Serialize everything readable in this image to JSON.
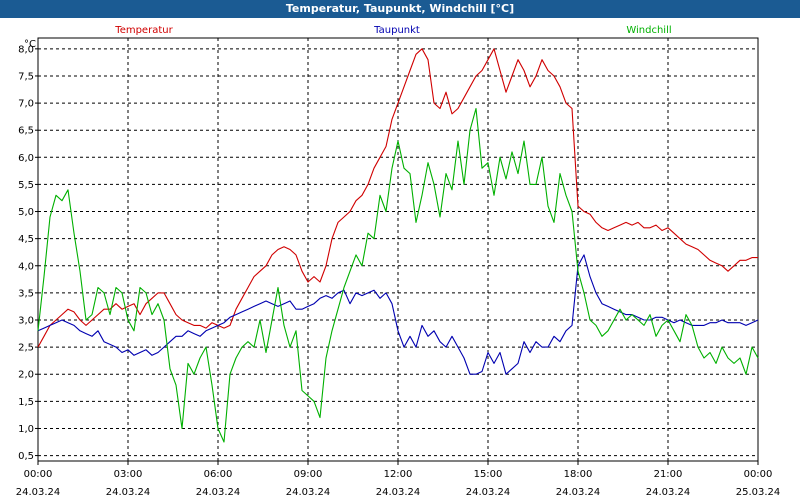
{
  "window": {
    "title": "Temperatur, Taupunkt, Windchill [°C]"
  },
  "chart_data": {
    "type": "line",
    "title": "Temperatur, Taupunkt, Windchill [°C]",
    "ylabel": "°C",
    "ylim": [
      0.4,
      8.2
    ],
    "xlim": [
      0,
      24
    ],
    "grid": true,
    "legend_placement": "top",
    "yticks": [
      "0,5",
      "1,0",
      "1,5",
      "2,0",
      "2,5",
      "3,0",
      "3,5",
      "4,0",
      "4,5",
      "5,0",
      "5,5",
      "6,0",
      "6,5",
      "7,0",
      "7,5",
      "8,0"
    ],
    "xticks": [
      {
        "time": "00:00",
        "date": "24.03.24"
      },
      {
        "time": "03:00",
        "date": "24.03.24"
      },
      {
        "time": "06:00",
        "date": "24.03.24"
      },
      {
        "time": "09:00",
        "date": "24.03.24"
      },
      {
        "time": "12:00",
        "date": "24.03.24"
      },
      {
        "time": "15:00",
        "date": "24.03.24"
      },
      {
        "time": "18:00",
        "date": "24.03.24"
      },
      {
        "time": "21:00",
        "date": "24.03.24"
      },
      {
        "time": "00:00",
        "date": "25.03.24"
      }
    ],
    "series": [
      {
        "name": "Temperatur",
        "color": "#d00000",
        "x": [
          0,
          0.2,
          0.4,
          0.6,
          0.8,
          1.0,
          1.2,
          1.4,
          1.6,
          1.8,
          2.0,
          2.2,
          2.4,
          2.6,
          2.8,
          3.0,
          3.2,
          3.4,
          3.6,
          3.8,
          4.0,
          4.2,
          4.4,
          4.6,
          4.8,
          5.0,
          5.2,
          5.4,
          5.6,
          5.8,
          6.0,
          6.2,
          6.4,
          6.6,
          6.8,
          7.0,
          7.2,
          7.4,
          7.6,
          7.8,
          8.0,
          8.2,
          8.4,
          8.6,
          8.8,
          9.0,
          9.2,
          9.4,
          9.6,
          9.8,
          10.0,
          10.2,
          10.4,
          10.6,
          10.8,
          11.0,
          11.2,
          11.4,
          11.6,
          11.8,
          12.0,
          12.2,
          12.4,
          12.6,
          12.8,
          13.0,
          13.2,
          13.4,
          13.6,
          13.8,
          14.0,
          14.2,
          14.4,
          14.6,
          14.8,
          15.0,
          15.2,
          15.4,
          15.6,
          15.8,
          16.0,
          16.2,
          16.4,
          16.6,
          16.8,
          17.0,
          17.2,
          17.4,
          17.6,
          17.8,
          18.0,
          18.2,
          18.4,
          18.6,
          18.8,
          19.0,
          19.2,
          19.4,
          19.6,
          19.8,
          20.0,
          20.2,
          20.4,
          20.6,
          20.8,
          21.0,
          21.2,
          21.4,
          21.6,
          21.8,
          22.0,
          22.2,
          22.4,
          22.6,
          22.8,
          23.0,
          23.2,
          23.4,
          23.6,
          23.8,
          24.0
        ],
        "y": [
          2.5,
          2.7,
          2.9,
          3.0,
          3.1,
          3.2,
          3.15,
          3.0,
          2.9,
          3.0,
          3.1,
          3.2,
          3.2,
          3.3,
          3.2,
          3.25,
          3.3,
          3.1,
          3.3,
          3.4,
          3.5,
          3.5,
          3.3,
          3.1,
          3.0,
          2.95,
          2.9,
          2.9,
          2.85,
          2.95,
          2.9,
          2.85,
          2.9,
          3.2,
          3.4,
          3.6,
          3.8,
          3.9,
          4.0,
          4.2,
          4.3,
          4.35,
          4.3,
          4.2,
          3.9,
          3.7,
          3.8,
          3.7,
          4.0,
          4.5,
          4.8,
          4.9,
          5.0,
          5.2,
          5.3,
          5.5,
          5.8,
          6.0,
          6.2,
          6.7,
          7.0,
          7.3,
          7.6,
          7.9,
          8.0,
          7.8,
          7.0,
          6.9,
          7.2,
          6.8,
          6.9,
          7.1,
          7.3,
          7.5,
          7.6,
          7.8,
          8.0,
          7.6,
          7.2,
          7.5,
          7.8,
          7.6,
          7.3,
          7.5,
          7.8,
          7.6,
          7.5,
          7.3,
          7.0,
          6.9,
          5.1,
          5.0,
          4.95,
          4.8,
          4.7,
          4.65,
          4.7,
          4.75,
          4.8,
          4.75,
          4.8,
          4.7,
          4.7,
          4.75,
          4.65,
          4.7,
          4.6,
          4.5,
          4.4,
          4.35,
          4.3,
          4.2,
          4.1,
          4.05,
          4.0,
          3.9,
          4.0,
          4.1,
          4.1,
          4.15,
          4.15
        ]
      },
      {
        "name": "Taupunkt",
        "color": "#0000b0",
        "x": [
          0,
          0.2,
          0.4,
          0.6,
          0.8,
          1.0,
          1.2,
          1.4,
          1.6,
          1.8,
          2.0,
          2.2,
          2.4,
          2.6,
          2.8,
          3.0,
          3.2,
          3.4,
          3.6,
          3.8,
          4.0,
          4.2,
          4.4,
          4.6,
          4.8,
          5.0,
          5.2,
          5.4,
          5.6,
          5.8,
          6.0,
          6.2,
          6.4,
          6.6,
          6.8,
          7.0,
          7.2,
          7.4,
          7.6,
          7.8,
          8.0,
          8.2,
          8.4,
          8.6,
          8.8,
          9.0,
          9.2,
          9.4,
          9.6,
          9.8,
          10.0,
          10.2,
          10.4,
          10.6,
          10.8,
          11.0,
          11.2,
          11.4,
          11.6,
          11.8,
          12.0,
          12.2,
          12.4,
          12.6,
          12.8,
          13.0,
          13.2,
          13.4,
          13.6,
          13.8,
          14.0,
          14.2,
          14.4,
          14.6,
          14.8,
          15.0,
          15.2,
          15.4,
          15.6,
          15.8,
          16.0,
          16.2,
          16.4,
          16.6,
          16.8,
          17.0,
          17.2,
          17.4,
          17.6,
          17.8,
          18.0,
          18.2,
          18.4,
          18.6,
          18.8,
          19.0,
          19.2,
          19.4,
          19.6,
          19.8,
          20.0,
          20.2,
          20.4,
          20.6,
          20.8,
          21.0,
          21.2,
          21.4,
          21.6,
          21.8,
          22.0,
          22.2,
          22.4,
          22.6,
          22.8,
          23.0,
          23.2,
          23.4,
          23.6,
          23.8,
          24.0
        ],
        "y": [
          2.8,
          2.85,
          2.9,
          2.95,
          3.0,
          2.95,
          2.9,
          2.8,
          2.75,
          2.7,
          2.8,
          2.6,
          2.55,
          2.5,
          2.4,
          2.45,
          2.35,
          2.4,
          2.45,
          2.35,
          2.4,
          2.5,
          2.6,
          2.7,
          2.7,
          2.8,
          2.75,
          2.7,
          2.8,
          2.85,
          2.9,
          2.95,
          3.05,
          3.1,
          3.15,
          3.2,
          3.25,
          3.3,
          3.35,
          3.3,
          3.25,
          3.3,
          3.35,
          3.2,
          3.2,
          3.25,
          3.3,
          3.4,
          3.45,
          3.4,
          3.5,
          3.55,
          3.3,
          3.5,
          3.45,
          3.5,
          3.55,
          3.4,
          3.5,
          3.3,
          2.8,
          2.5,
          2.7,
          2.5,
          2.9,
          2.7,
          2.8,
          2.6,
          2.5,
          2.7,
          2.5,
          2.3,
          2.0,
          2.0,
          2.05,
          2.4,
          2.2,
          2.4,
          2.0,
          2.1,
          2.2,
          2.6,
          2.4,
          2.6,
          2.5,
          2.5,
          2.7,
          2.6,
          2.8,
          2.9,
          4.0,
          4.2,
          3.8,
          3.5,
          3.3,
          3.25,
          3.2,
          3.15,
          3.1,
          3.1,
          3.05,
          3.0,
          3.0,
          3.05,
          3.05,
          3.0,
          2.95,
          3.0,
          2.95,
          2.9,
          2.9,
          2.9,
          2.95,
          2.95,
          3.0,
          2.95,
          2.95,
          2.95,
          2.9,
          2.95,
          3.0
        ]
      },
      {
        "name": "Windchill",
        "color": "#00b000",
        "x": [
          0,
          0.2,
          0.4,
          0.6,
          0.8,
          1.0,
          1.2,
          1.4,
          1.6,
          1.8,
          2.0,
          2.2,
          2.4,
          2.6,
          2.8,
          3.0,
          3.2,
          3.4,
          3.6,
          3.8,
          4.0,
          4.2,
          4.4,
          4.6,
          4.8,
          5.0,
          5.2,
          5.4,
          5.6,
          5.8,
          6.0,
          6.2,
          6.4,
          6.6,
          6.8,
          7.0,
          7.2,
          7.4,
          7.6,
          7.8,
          8.0,
          8.2,
          8.4,
          8.6,
          8.8,
          9.0,
          9.2,
          9.4,
          9.6,
          9.8,
          10.0,
          10.2,
          10.4,
          10.6,
          10.8,
          11.0,
          11.2,
          11.4,
          11.6,
          11.8,
          12.0,
          12.2,
          12.4,
          12.6,
          12.8,
          13.0,
          13.2,
          13.4,
          13.6,
          13.8,
          14.0,
          14.2,
          14.4,
          14.6,
          14.8,
          15.0,
          15.2,
          15.4,
          15.6,
          15.8,
          16.0,
          16.2,
          16.4,
          16.6,
          16.8,
          17.0,
          17.2,
          17.4,
          17.6,
          17.8,
          18.0,
          18.2,
          18.4,
          18.6,
          18.8,
          19.0,
          19.2,
          19.4,
          19.6,
          19.8,
          20.0,
          20.2,
          20.4,
          20.6,
          20.8,
          21.0,
          21.2,
          21.4,
          21.6,
          21.8,
          22.0,
          22.2,
          22.4,
          22.6,
          22.8,
          23.0,
          23.2,
          23.4,
          23.6,
          23.8,
          24.0
        ],
        "y": [
          2.8,
          3.8,
          4.9,
          5.3,
          5.2,
          5.4,
          4.6,
          3.9,
          3.0,
          3.1,
          3.6,
          3.5,
          3.1,
          3.6,
          3.5,
          3.0,
          2.8,
          3.6,
          3.5,
          3.1,
          3.3,
          3.0,
          2.1,
          1.8,
          1.0,
          2.2,
          2.0,
          2.3,
          2.5,
          1.8,
          1.0,
          0.75,
          2.0,
          2.3,
          2.5,
          2.6,
          2.5,
          3.0,
          2.4,
          3.0,
          3.6,
          2.9,
          2.5,
          2.8,
          1.7,
          1.6,
          1.5,
          1.2,
          2.3,
          2.8,
          3.2,
          3.6,
          3.9,
          4.2,
          4.0,
          4.6,
          4.5,
          5.3,
          5.0,
          5.8,
          6.3,
          5.8,
          5.7,
          4.8,
          5.3,
          5.9,
          5.5,
          4.9,
          5.7,
          5.4,
          6.3,
          5.5,
          6.5,
          6.9,
          5.8,
          5.9,
          5.3,
          6.0,
          5.6,
          6.1,
          5.7,
          6.3,
          5.5,
          5.5,
          6.0,
          5.1,
          4.8,
          5.7,
          5.3,
          5.0,
          3.9,
          3.5,
          3.0,
          2.9,
          2.7,
          2.8,
          3.0,
          3.2,
          3.0,
          3.1,
          3.0,
          2.9,
          3.1,
          2.7,
          2.9,
          3.0,
          2.8,
          2.6,
          3.1,
          2.9,
          2.5,
          2.3,
          2.4,
          2.2,
          2.5,
          2.3,
          2.2,
          2.3,
          2.0,
          2.5,
          2.3
        ]
      }
    ]
  }
}
